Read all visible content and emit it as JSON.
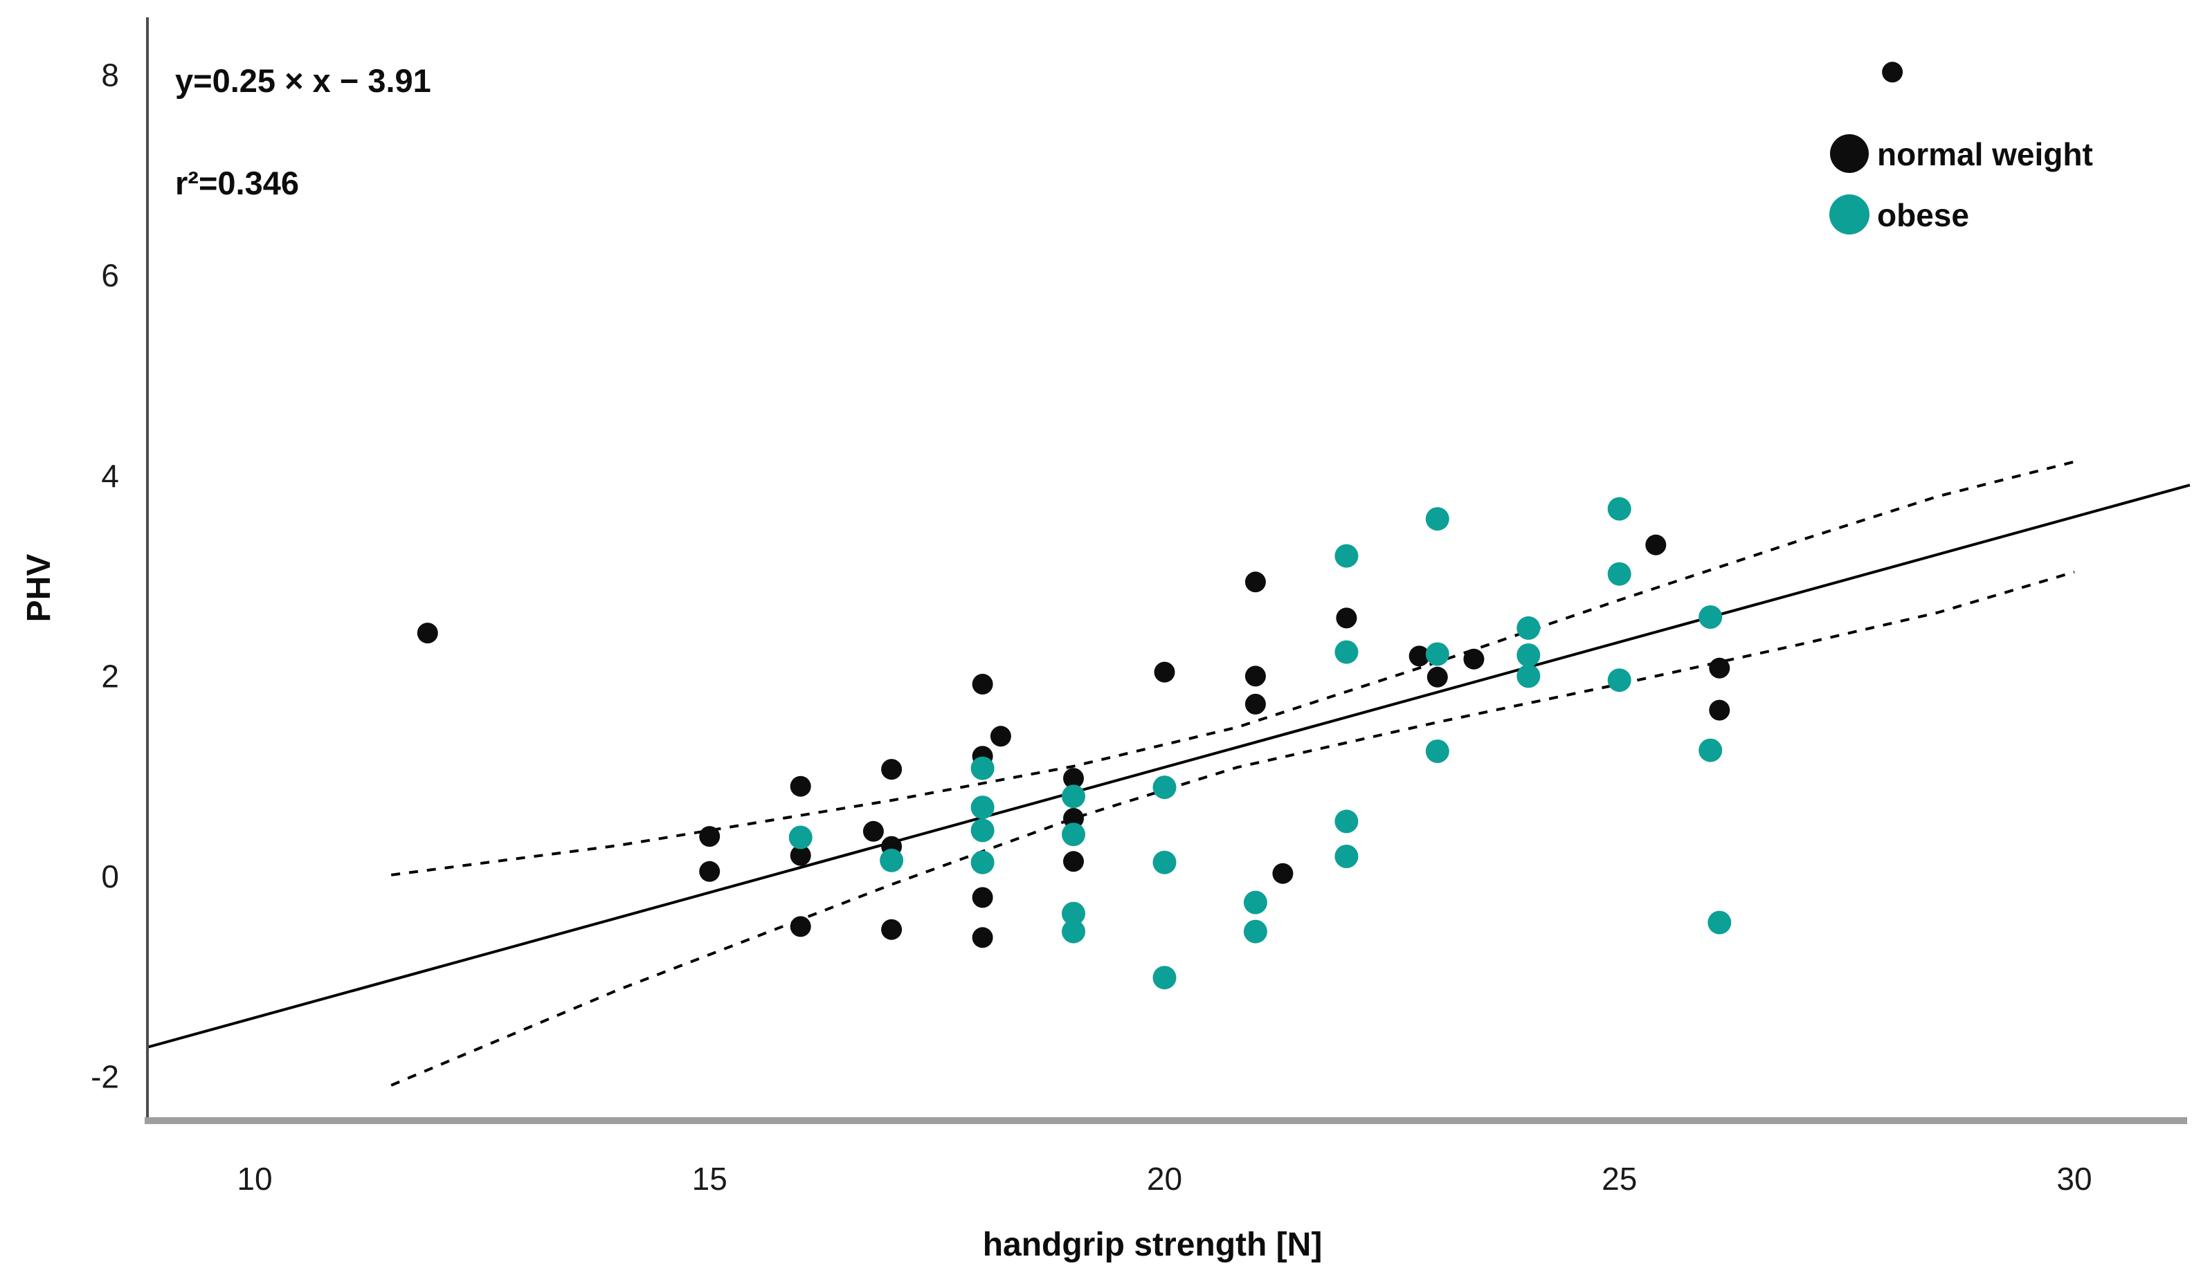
{
  "figure": {
    "background": "#ffffff",
    "axis_color": "#4d4d4d",
    "baseline_color": "#9e9e9e"
  },
  "chart_data": {
    "type": "scatter",
    "title": "",
    "xlabel": "handgrip strength [N]",
    "ylabel": "PHV",
    "annotation_line1": "y=0.25 × x − 3.91",
    "annotation_line2": "r²=0.346",
    "x_ticks": [
      "10",
      "15",
      "20",
      "25",
      "30"
    ],
    "x_tick_values": [
      10,
      15,
      20,
      25,
      30
    ],
    "y_ticks": [
      "8",
      "6",
      "4",
      "2",
      "0",
      "-2"
    ],
    "y_tick_values": [
      8,
      6,
      4,
      2,
      0,
      -2
    ],
    "xlim": [
      8.8,
      31.5
    ],
    "ylim": [
      -2.45,
      8.6
    ],
    "grid": false,
    "legend_position": "top-right",
    "legend": [
      {
        "label": "normal weight",
        "color": "#0d0d0d"
      },
      {
        "label": "obese",
        "color": "#0da096"
      }
    ],
    "regression_line": {
      "slope": 0.25,
      "intercept": -3.91,
      "x_start": 8.82,
      "x_end": 31.27,
      "color": "#000000",
      "style": "solid"
    },
    "confidence_band": {
      "style": "dashed",
      "color": "#000000",
      "x": [
        11.5,
        14,
        17,
        19,
        20.8,
        23,
        25,
        27,
        28.5,
        30
      ],
      "half_width": [
        1.05,
        0.72,
        0.42,
        0.26,
        0.2,
        0.3,
        0.42,
        0.52,
        0.58,
        0.55
      ]
    },
    "series": [
      {
        "name": "normal weight",
        "color": "#0d0d0d",
        "marker_radius_px": 15,
        "points": [
          [
            11.9,
            2.43
          ],
          [
            15,
            0.4
          ],
          [
            15,
            0.05
          ],
          [
            16,
            0.9
          ],
          [
            16,
            0.21
          ],
          [
            16,
            -0.5
          ],
          [
            16.8,
            0.45
          ],
          [
            17,
            1.07
          ],
          [
            17,
            0.3
          ],
          [
            17,
            -0.53
          ],
          [
            18,
            1.92
          ],
          [
            18.2,
            1.4
          ],
          [
            18,
            1.2
          ],
          [
            18,
            -0.21
          ],
          [
            18,
            -0.61
          ],
          [
            19,
            0.98
          ],
          [
            19,
            0.58
          ],
          [
            19,
            0.15
          ],
          [
            20,
            2.04
          ],
          [
            21,
            2.94
          ],
          [
            21,
            2.0
          ],
          [
            21,
            1.72
          ],
          [
            21.3,
            0.03
          ],
          [
            22,
            2.58
          ],
          [
            22.8,
            2.2
          ],
          [
            23,
            1.99
          ],
          [
            23.4,
            2.17
          ],
          [
            25.4,
            3.31
          ],
          [
            26.1,
            2.08
          ],
          [
            26.1,
            1.66
          ],
          [
            28,
            8.03
          ]
        ]
      },
      {
        "name": "obese",
        "color": "#0da096",
        "marker_radius_px": 17,
        "points": [
          [
            16,
            0.39
          ],
          [
            17,
            0.16
          ],
          [
            18,
            1.08
          ],
          [
            18,
            0.69
          ],
          [
            18,
            0.46
          ],
          [
            18,
            0.14
          ],
          [
            19,
            0.8
          ],
          [
            19,
            0.42
          ],
          [
            19,
            -0.37
          ],
          [
            19,
            -0.55
          ],
          [
            20,
            0.89
          ],
          [
            20,
            0.14
          ],
          [
            20,
            -1.01
          ],
          [
            21,
            -0.26
          ],
          [
            21,
            -0.55
          ],
          [
            22,
            3.2
          ],
          [
            22,
            2.24
          ],
          [
            22,
            0.55
          ],
          [
            22,
            0.2
          ],
          [
            23,
            3.57
          ],
          [
            23,
            2.22
          ],
          [
            23,
            1.25
          ],
          [
            24,
            2.48
          ],
          [
            24,
            2.21
          ],
          [
            24,
            2.0
          ],
          [
            25,
            3.67
          ],
          [
            25,
            3.02
          ],
          [
            25,
            1.96
          ],
          [
            26,
            2.59
          ],
          [
            26,
            1.26
          ],
          [
            26.1,
            -0.46
          ]
        ]
      }
    ]
  }
}
